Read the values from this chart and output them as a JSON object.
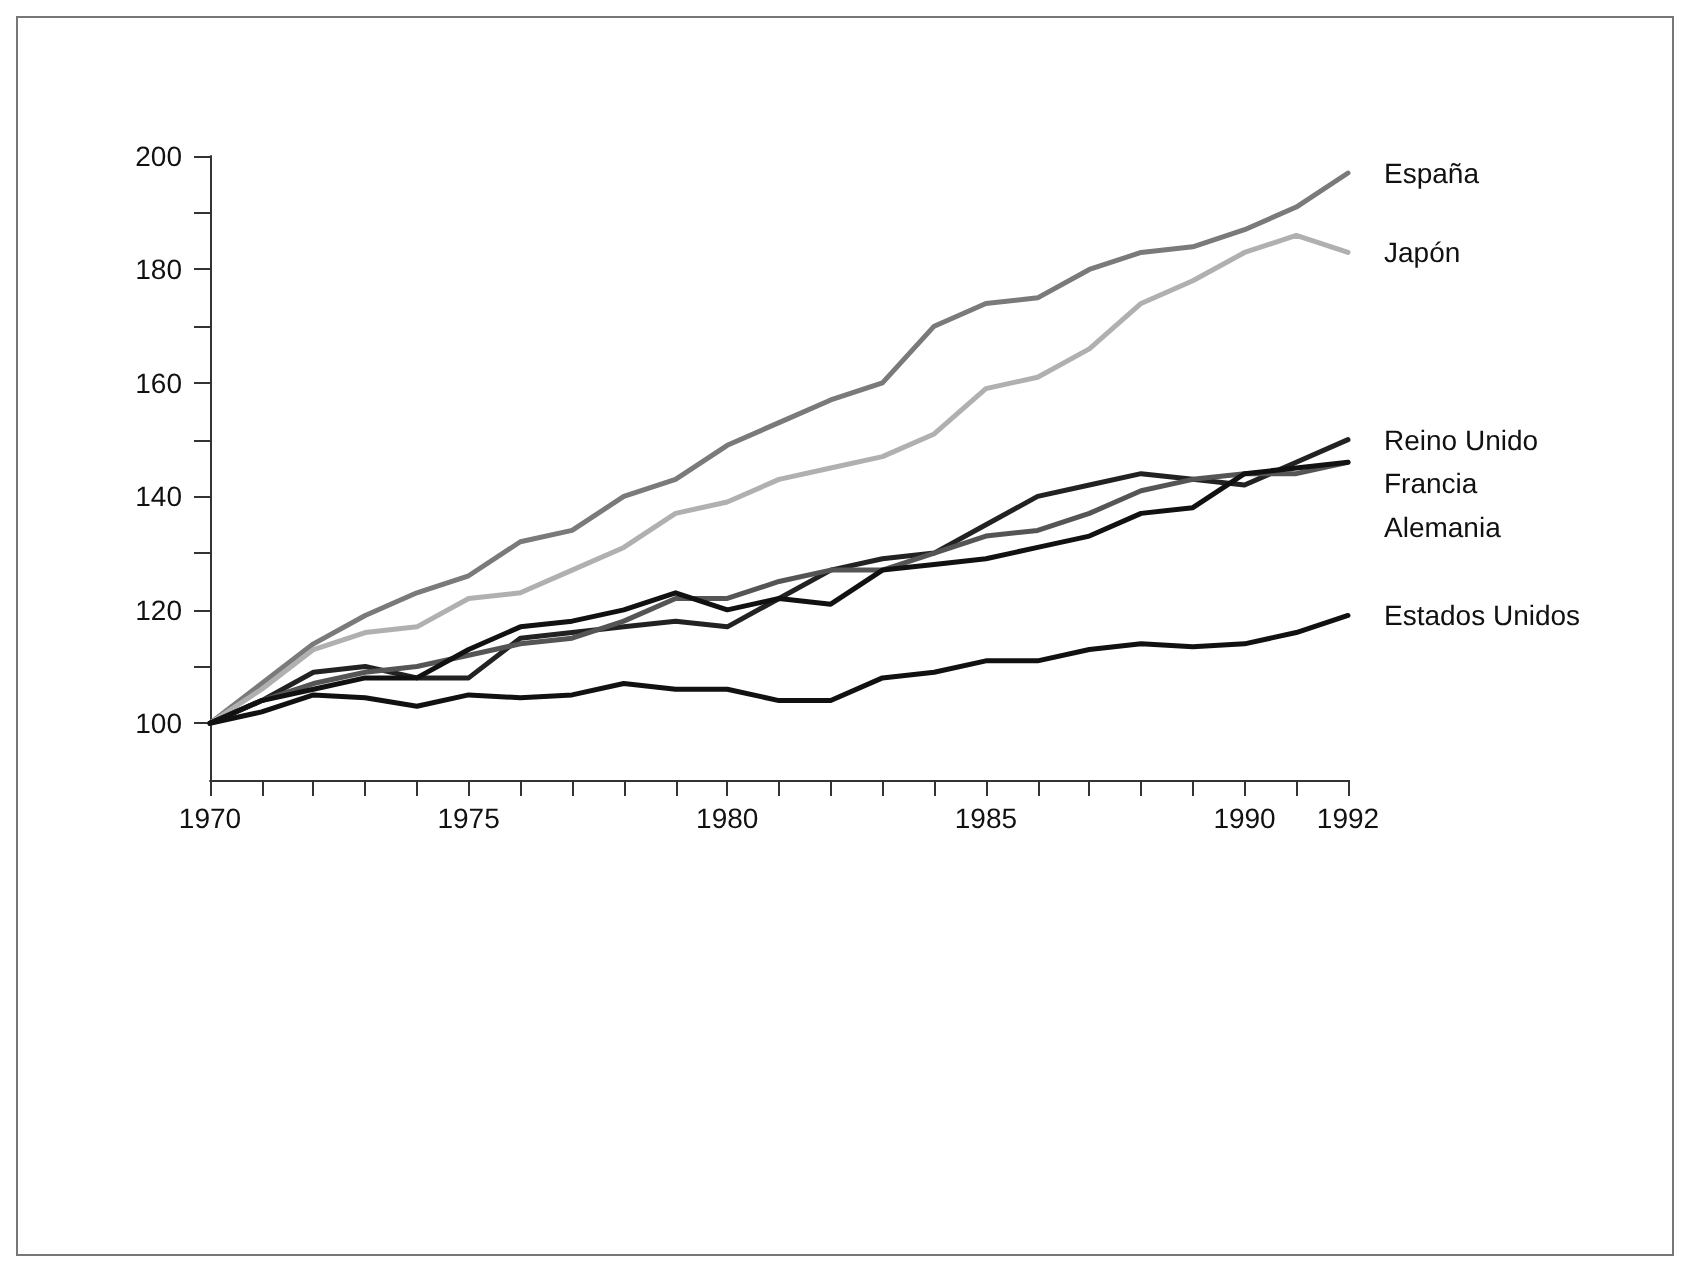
{
  "chart_data": {
    "type": "line",
    "x": [
      1970,
      1971,
      1972,
      1973,
      1974,
      1975,
      1976,
      1977,
      1978,
      1979,
      1980,
      1981,
      1982,
      1983,
      1984,
      1985,
      1986,
      1987,
      1988,
      1989,
      1990,
      1991,
      1992
    ],
    "series": [
      {
        "name": "España",
        "color": "#7a7a7a",
        "values": [
          100,
          107,
          114,
          119,
          123,
          126,
          132,
          134,
          140,
          143,
          149,
          153,
          157,
          160,
          170,
          174,
          175,
          180,
          183,
          184,
          187,
          191,
          197
        ]
      },
      {
        "name": "Japón",
        "color": "#b0b0b0",
        "values": [
          100,
          106,
          113,
          116,
          117,
          122,
          123,
          127,
          131,
          137,
          139,
          143,
          145,
          147,
          151,
          159,
          161,
          166,
          174,
          178,
          183,
          186,
          183
        ]
      },
      {
        "name": "Reino Unido",
        "color": "#222222",
        "values": [
          100,
          104,
          109,
          110,
          108,
          108,
          115,
          116,
          117,
          118,
          117,
          122,
          127,
          129,
          130,
          135,
          140,
          142,
          144,
          143,
          142,
          146,
          150
        ]
      },
      {
        "name": "Francia",
        "color": "#555555",
        "values": [
          100,
          104,
          107,
          109,
          110,
          112,
          114,
          115,
          118,
          122,
          122,
          125,
          127,
          127,
          130,
          133,
          134,
          137,
          141,
          143,
          144,
          144,
          146
        ]
      },
      {
        "name": "Alemania",
        "color": "#111111",
        "values": [
          100,
          104,
          106,
          108,
          108,
          113,
          117,
          118,
          120,
          123,
          120,
          122,
          121,
          127,
          128,
          129,
          131,
          133,
          137,
          138,
          144,
          145,
          146
        ]
      },
      {
        "name": "Estados Unidos",
        "color": "#111111",
        "values": [
          100,
          102,
          105,
          104.5,
          103,
          105,
          104.5,
          105,
          107,
          106,
          106,
          104,
          104,
          108,
          109,
          111,
          111,
          113,
          114,
          113.5,
          114,
          116,
          119
        ]
      }
    ],
    "xlim": [
      1970,
      1992
    ],
    "xticks": [
      1970,
      {
        "value": 1971,
        "label": null
      },
      {
        "value": 1972,
        "label": null
      },
      {
        "value": 1973,
        "label": null
      },
      {
        "value": 1974,
        "label": null
      },
      1975,
      {
        "value": 1976,
        "label": null
      },
      {
        "value": 1977,
        "label": null
      },
      {
        "value": 1978,
        "label": null
      },
      {
        "value": 1979,
        "label": null
      },
      1980,
      {
        "value": 1981,
        "label": null
      },
      {
        "value": 1982,
        "label": null
      },
      {
        "value": 1983,
        "label": null
      },
      {
        "value": 1984,
        "label": null
      },
      1985,
      {
        "value": 1986,
        "label": null
      },
      {
        "value": 1987,
        "label": null
      },
      {
        "value": 1988,
        "label": null
      },
      {
        "value": 1989,
        "label": null
      },
      1990,
      {
        "value": 1991,
        "label": null
      },
      1992
    ],
    "ylim": [
      90,
      200
    ],
    "yticks": [
      100,
      {
        "value": 110,
        "label": null
      },
      120,
      {
        "value": 130,
        "label": null
      },
      140,
      {
        "value": 150,
        "label": null
      },
      160,
      {
        "value": 170,
        "label": null
      },
      180,
      {
        "value": 190,
        "label": null
      },
      200
    ],
    "grid": false,
    "legend": false,
    "marker": "none",
    "line_style": "solid"
  }
}
